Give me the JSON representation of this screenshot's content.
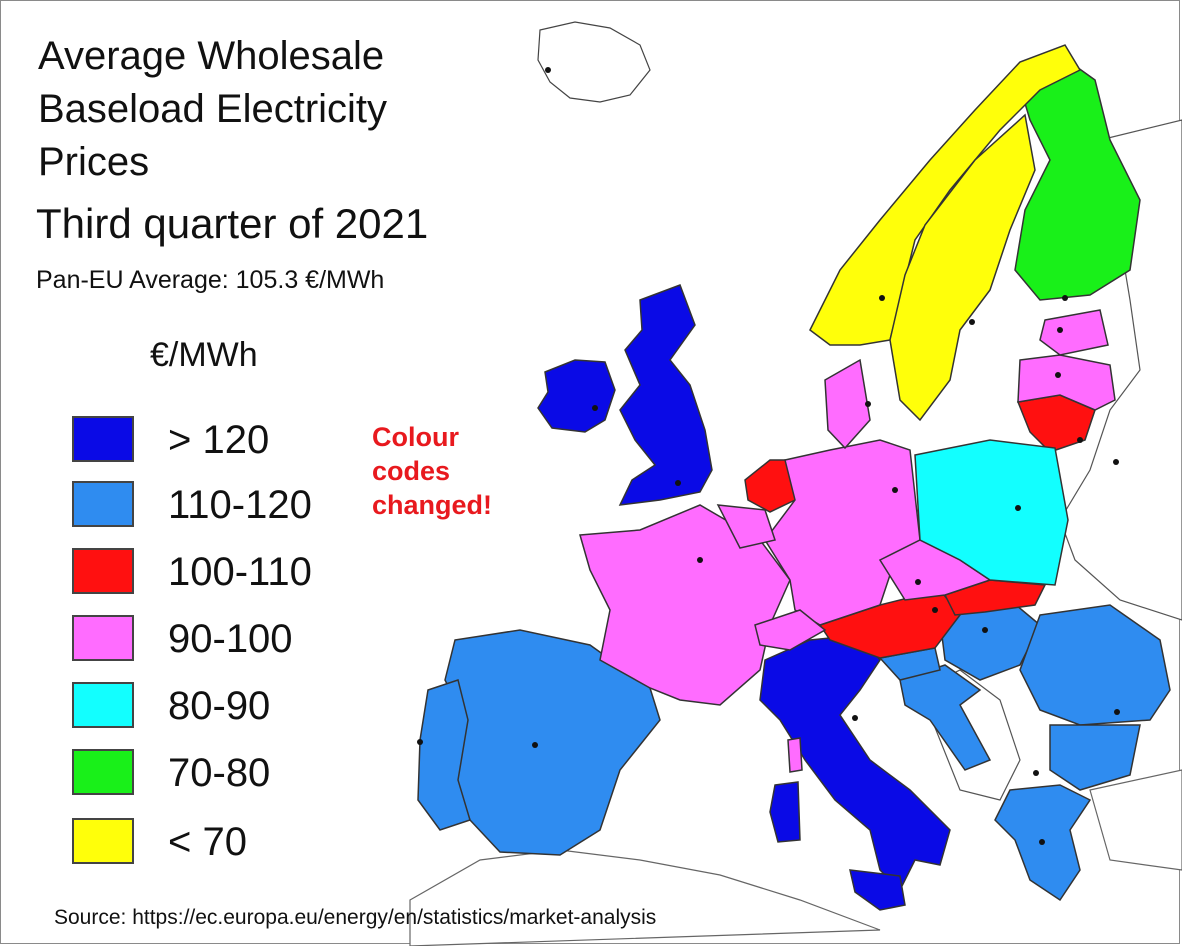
{
  "title": "Average Wholesale Baseload Electricity Prices",
  "subtitle": "Third quarter of 2021",
  "average": "Pan-EU Average: 105.3 €/MWh",
  "unit": "€/MWh",
  "note": "Colour codes changed!",
  "source": "Source: https://ec.europa.eu/energy/en/statistics/market-analysis",
  "legend": [
    {
      "label": "> 120",
      "color": "#0a0ae6"
    },
    {
      "label": "110-120",
      "color": "#2f8cf0"
    },
    {
      "label": "100-110",
      "color": "#ff1010"
    },
    {
      "label": "90-100",
      "color": "#ff6cff"
    },
    {
      "label": "80-90",
      "color": "#12ffff"
    },
    {
      "label": "70-80",
      "color": "#19f019"
    },
    {
      "label": "< 70",
      "color": "#ffff0a"
    }
  ],
  "regions": [
    {
      "name": "Ireland",
      "band": 0
    },
    {
      "name": "Great Britain",
      "band": 0
    },
    {
      "name": "Italy",
      "band": 0
    },
    {
      "name": "Spain",
      "band": 1
    },
    {
      "name": "Portugal",
      "band": 1
    },
    {
      "name": "Hungary",
      "band": 1
    },
    {
      "name": "Romania",
      "band": 1
    },
    {
      "name": "Bulgaria",
      "band": 1
    },
    {
      "name": "Greece",
      "band": 1
    },
    {
      "name": "Croatia",
      "band": 1
    },
    {
      "name": "Slovenia",
      "band": 1
    },
    {
      "name": "Netherlands",
      "band": 2
    },
    {
      "name": "Austria",
      "band": 2
    },
    {
      "name": "Slovakia",
      "band": 2
    },
    {
      "name": "Lithuania",
      "band": 2
    },
    {
      "name": "France",
      "band": 3
    },
    {
      "name": "Germany",
      "band": 3
    },
    {
      "name": "Belgium",
      "band": 3
    },
    {
      "name": "Switzerland",
      "band": 3
    },
    {
      "name": "Czechia",
      "band": 3
    },
    {
      "name": "Denmark",
      "band": 3
    },
    {
      "name": "Latvia",
      "band": 3
    },
    {
      "name": "Estonia",
      "band": 3
    },
    {
      "name": "Corsica",
      "band": 3
    },
    {
      "name": "Poland",
      "band": 4
    },
    {
      "name": "Finland",
      "band": 5
    },
    {
      "name": "Norway",
      "band": 6
    },
    {
      "name": "Sweden",
      "band": 6
    }
  ]
}
